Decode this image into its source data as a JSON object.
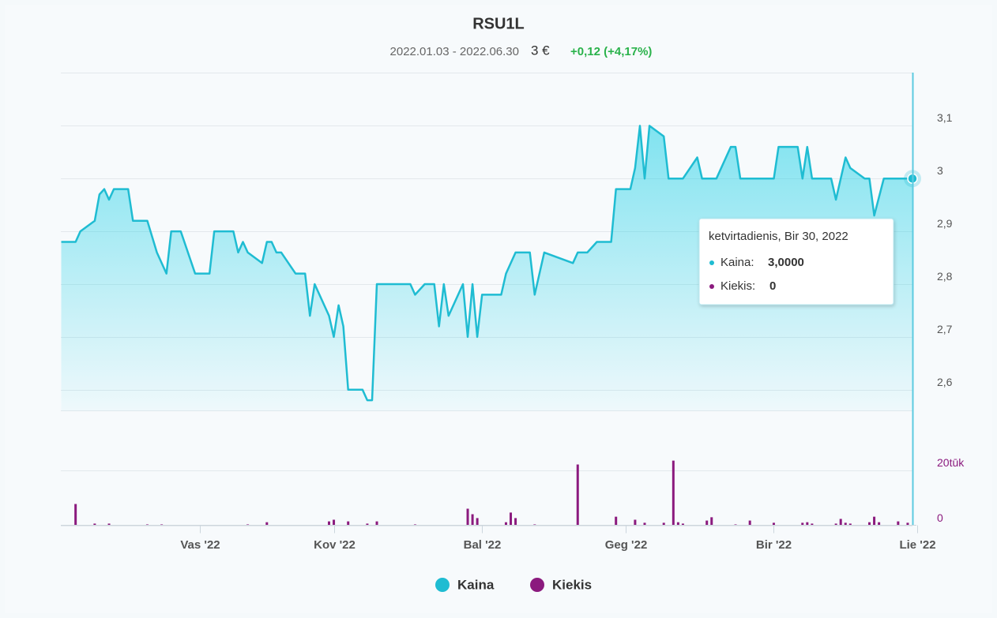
{
  "chart_data": {
    "type": "line",
    "title": "RSU1L",
    "subtitle": {
      "range": "2022.01.03 - 2022.06.30",
      "price": "3 €",
      "change": "+0,12 (+4,17%)"
    },
    "xlim": [
      "2022-01-03",
      "2022-06-30"
    ],
    "xticks": [
      {
        "value": "2022-02-01",
        "label": "Vas '22"
      },
      {
        "value": "2022-03-01",
        "label": "Kov '22"
      },
      {
        "value": "2022-04-01",
        "label": "Bal '22"
      },
      {
        "value": "2022-05-01",
        "label": "Geg '22"
      },
      {
        "value": "2022-06-01",
        "label": "Bir '22"
      },
      {
        "value": "2022-07-01",
        "label": "Lie '22"
      }
    ],
    "ylim": [
      2.56,
      3.2
    ],
    "yticks": [
      {
        "value": 3.1,
        "label": "3,1"
      },
      3,
      {
        "value": 2.9,
        "label": "2,9"
      },
      {
        "value": 2.8,
        "label": "2,8"
      },
      {
        "value": 2.7,
        "label": "2,7"
      },
      {
        "value": 2.6,
        "label": "2,6"
      }
    ],
    "y2lim": [
      0,
      20000
    ],
    "y2ticks": [
      {
        "value": 20000,
        "label": "20tūk"
      },
      0
    ],
    "grid": true,
    "legend": "bottom",
    "series": [
      {
        "name": "Kaina",
        "color": "#1fbcd2",
        "x": [
          "2022-01-03",
          "2022-01-06",
          "2022-01-07",
          "2022-01-10",
          "2022-01-11",
          "2022-01-12",
          "2022-01-13",
          "2022-01-14",
          "2022-01-17",
          "2022-01-18",
          "2022-01-21",
          "2022-01-23",
          "2022-01-25",
          "2022-01-26",
          "2022-01-28",
          "2022-01-31",
          "2022-02-03",
          "2022-02-04",
          "2022-02-08",
          "2022-02-09",
          "2022-02-10",
          "2022-02-11",
          "2022-02-14",
          "2022-02-15",
          "2022-02-16",
          "2022-02-17",
          "2022-02-18",
          "2022-02-21",
          "2022-02-23",
          "2022-02-24",
          "2022-02-25",
          "2022-02-28",
          "2022-03-01",
          "2022-03-02",
          "2022-03-03",
          "2022-03-04",
          "2022-03-07",
          "2022-03-08",
          "2022-03-09",
          "2022-03-10",
          "2022-03-17",
          "2022-03-18",
          "2022-03-20",
          "2022-03-22",
          "2022-03-23",
          "2022-03-24",
          "2022-03-25",
          "2022-03-28",
          "2022-03-29",
          "2022-03-30",
          "2022-03-31",
          "2022-04-01",
          "2022-04-05",
          "2022-04-06",
          "2022-04-08",
          "2022-04-11",
          "2022-04-12",
          "2022-04-14",
          "2022-04-20",
          "2022-04-21",
          "2022-04-23",
          "2022-04-25",
          "2022-04-28",
          "2022-04-29",
          "2022-05-02",
          "2022-05-03",
          "2022-05-04",
          "2022-05-05",
          "2022-05-06",
          "2022-05-09",
          "2022-05-10",
          "2022-05-13",
          "2022-05-16",
          "2022-05-17",
          "2022-05-20",
          "2022-05-23",
          "2022-05-24",
          "2022-05-25",
          "2022-06-01",
          "2022-06-02",
          "2022-06-06",
          "2022-06-07",
          "2022-06-08",
          "2022-06-09",
          "2022-06-13",
          "2022-06-14",
          "2022-06-16",
          "2022-06-17",
          "2022-06-20",
          "2022-06-21",
          "2022-06-22",
          "2022-06-24",
          "2022-06-30"
        ],
        "values": [
          2.88,
          2.88,
          2.9,
          2.92,
          2.97,
          2.98,
          2.96,
          2.98,
          2.98,
          2.92,
          2.92,
          2.86,
          2.82,
          2.9,
          2.9,
          2.82,
          2.82,
          2.9,
          2.9,
          2.86,
          2.88,
          2.86,
          2.84,
          2.88,
          2.88,
          2.86,
          2.86,
          2.82,
          2.82,
          2.74,
          2.8,
          2.74,
          2.7,
          2.76,
          2.72,
          2.6,
          2.6,
          2.58,
          2.58,
          2.8,
          2.8,
          2.78,
          2.8,
          2.8,
          2.72,
          2.8,
          2.74,
          2.8,
          2.7,
          2.8,
          2.7,
          2.78,
          2.78,
          2.82,
          2.86,
          2.86,
          2.78,
          2.86,
          2.84,
          2.86,
          2.86,
          2.88,
          2.88,
          2.98,
          2.98,
          3.02,
          3.1,
          3.0,
          3.1,
          3.08,
          3.0,
          3.0,
          3.04,
          3.0,
          3.0,
          3.06,
          3.06,
          3.0,
          3.0,
          3.06,
          3.06,
          3.0,
          3.06,
          3.0,
          3.0,
          2.96,
          3.04,
          3.02,
          3.0,
          3.0,
          2.93,
          3.0,
          3.0
        ]
      },
      {
        "name": "Kiekis",
        "color": "#8b1a7e",
        "axis": "y2",
        "x": [
          "2022-01-06",
          "2022-01-10",
          "2022-01-13",
          "2022-01-21",
          "2022-01-24",
          "2022-02-11",
          "2022-02-15",
          "2022-02-28",
          "2022-03-01",
          "2022-03-04",
          "2022-03-08",
          "2022-03-10",
          "2022-03-18",
          "2022-03-29",
          "2022-03-30",
          "2022-03-31",
          "2022-04-06",
          "2022-04-07",
          "2022-04-08",
          "2022-04-12",
          "2022-04-21",
          "2022-04-29",
          "2022-05-03",
          "2022-05-05",
          "2022-05-09",
          "2022-05-11",
          "2022-05-12",
          "2022-05-13",
          "2022-05-18",
          "2022-05-19",
          "2022-05-24",
          "2022-05-27",
          "2022-06-01",
          "2022-06-07",
          "2022-06-08",
          "2022-06-09",
          "2022-06-14",
          "2022-06-15",
          "2022-06-16",
          "2022-06-17",
          "2022-06-21",
          "2022-06-22",
          "2022-06-23",
          "2022-06-27",
          "2022-06-29",
          "2022-06-30"
        ],
        "values": [
          7700,
          600,
          600,
          300,
          300,
          300,
          1100,
          1400,
          2000,
          1400,
          600,
          1400,
          300,
          6000,
          4000,
          2600,
          1100,
          4600,
          2600,
          300,
          22000,
          3100,
          2000,
          900,
          900,
          23400,
          1100,
          600,
          1700,
          2900,
          300,
          1700,
          900,
          900,
          1100,
          600,
          600,
          2300,
          900,
          600,
          1100,
          3100,
          1100,
          1400,
          900,
          0
        ]
      }
    ],
    "tooltip": {
      "date": "ketvirtadienis, Bir 30, 2022",
      "items": [
        {
          "label": "Kaina:",
          "value": "3,0000"
        },
        {
          "label": "Kiekis:",
          "value": "0"
        }
      ]
    }
  }
}
